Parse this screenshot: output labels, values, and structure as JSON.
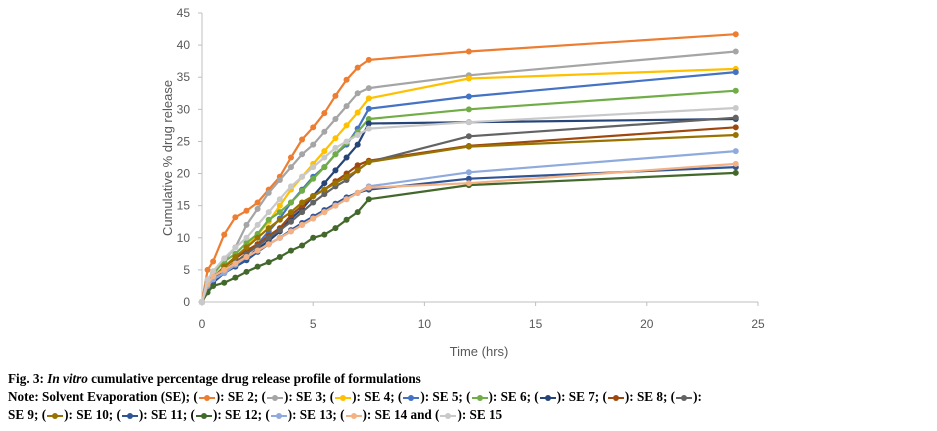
{
  "chart_data": {
    "type": "line",
    "xlabel": "Time (hrs)",
    "ylabel": "Cumulative % drug release",
    "xlim": [
      0,
      25
    ],
    "ylim": [
      0,
      45
    ],
    "xticks": [
      0,
      5,
      10,
      15,
      20,
      25
    ],
    "yticks": [
      0,
      5,
      10,
      15,
      20,
      25,
      30,
      35,
      40,
      45
    ],
    "series": [
      {
        "name": "SE 2",
        "color": "#ed7d31",
        "x": [
          0,
          0.25,
          0.5,
          1,
          1.5,
          2,
          2.5,
          3,
          3.5,
          4,
          4.5,
          5,
          5.5,
          6,
          6.5,
          7,
          7.5,
          12,
          24
        ],
        "y": [
          0,
          5,
          6.3,
          10.5,
          13.2,
          14.2,
          15.5,
          17.5,
          19.5,
          22.5,
          25.3,
          27.2,
          29.4,
          32.1,
          34.6,
          36.5,
          37.7,
          39,
          41.7
        ]
      },
      {
        "name": "SE 3",
        "color": "#a5a5a5",
        "x": [
          0,
          0.25,
          0.5,
          1,
          1.5,
          2,
          2.5,
          3,
          3.5,
          4,
          4.5,
          5,
          5.5,
          6,
          6.5,
          7,
          7.5,
          12,
          24
        ],
        "y": [
          0,
          3,
          4.2,
          6.5,
          8.5,
          12,
          14.5,
          17,
          19,
          21,
          23,
          24.5,
          26.5,
          28.5,
          30.5,
          32.5,
          33.3,
          35.3,
          39
        ]
      },
      {
        "name": "SE 4",
        "color": "#ffc000",
        "x": [
          0,
          0.25,
          0.5,
          1,
          1.5,
          2,
          2.5,
          3,
          3.5,
          4,
          4.5,
          5,
          5.5,
          6,
          6.5,
          7,
          7.5,
          12,
          24
        ],
        "y": [
          0,
          2.5,
          3.5,
          5,
          6.8,
          8.5,
          10.5,
          12.5,
          15,
          17.5,
          19.5,
          21.5,
          23.5,
          25.5,
          27.5,
          29.5,
          31.7,
          34.8,
          36.3
        ]
      },
      {
        "name": "SE 5",
        "color": "#4472c4",
        "x": [
          0,
          0.25,
          0.5,
          1,
          1.5,
          2,
          2.5,
          3,
          3.5,
          4,
          4.5,
          5,
          5.5,
          6,
          6.5,
          7,
          7.5,
          12,
          24
        ],
        "y": [
          0,
          2.5,
          3.5,
          5,
          6,
          7.5,
          9,
          11,
          13,
          15.5,
          17.5,
          19.5,
          21,
          23,
          24.5,
          27,
          30.1,
          32,
          35.8
        ]
      },
      {
        "name": "SE 6",
        "color": "#70ad47",
        "x": [
          0,
          0.25,
          0.5,
          1,
          1.5,
          2,
          2.5,
          3,
          3.5,
          4,
          4.5,
          5,
          5.5,
          6,
          6.5,
          7,
          7.5,
          12,
          24
        ],
        "y": [
          0,
          3,
          4.5,
          6.3,
          7.5,
          9.2,
          10.6,
          12.8,
          14,
          15.5,
          17.3,
          19.2,
          21,
          23,
          24.8,
          26.5,
          28.5,
          30,
          32.9
        ]
      },
      {
        "name": "SE 7",
        "color": "#264478",
        "x": [
          0,
          0.25,
          0.5,
          1,
          1.5,
          2,
          2.5,
          3,
          3.5,
          4,
          4.5,
          5,
          5.5,
          6,
          6.5,
          7,
          7.5,
          12,
          24
        ],
        "y": [
          0,
          2.2,
          3.3,
          4.8,
          5.8,
          6.8,
          8.3,
          9.5,
          11,
          13,
          14.5,
          16.5,
          18.5,
          20.5,
          22.5,
          24.5,
          27.8,
          28,
          28.5
        ]
      },
      {
        "name": "SE 8",
        "color": "#9e480e",
        "x": [
          0,
          0.25,
          0.5,
          1,
          1.5,
          2,
          2.5,
          3,
          3.5,
          4,
          4.5,
          5,
          5.5,
          6,
          6.5,
          7,
          7.5,
          12,
          24
        ],
        "y": [
          0,
          2.5,
          3.8,
          5.5,
          6.8,
          8,
          9,
          10.3,
          11.5,
          13.5,
          15,
          16.5,
          17.5,
          18.8,
          20,
          21.3,
          22,
          24.3,
          27.2
        ]
      },
      {
        "name": "SE 9",
        "color": "#636363",
        "x": [
          0,
          0.25,
          0.5,
          1,
          1.5,
          2,
          2.5,
          3,
          3.5,
          4,
          4.5,
          5,
          5.5,
          6,
          6.5,
          7,
          7.5,
          12,
          24
        ],
        "y": [
          0,
          2.3,
          3.5,
          5,
          6.2,
          7.5,
          8.7,
          10,
          11.2,
          12.5,
          14,
          15.5,
          16.8,
          18,
          19,
          20.5,
          21.8,
          25.8,
          28.7
        ]
      },
      {
        "name": "SE 10",
        "color": "#997300",
        "x": [
          0,
          0.25,
          0.5,
          1,
          1.5,
          2,
          2.5,
          3,
          3.5,
          4,
          4.5,
          5,
          5.5,
          6,
          6.5,
          7,
          7.5,
          12,
          24
        ],
        "y": [
          0,
          2.6,
          3.8,
          5.5,
          7,
          8.5,
          10,
          11.5,
          12.8,
          14,
          15.5,
          16.5,
          17.5,
          18.5,
          19.5,
          20.5,
          21.8,
          24.2,
          26
        ]
      },
      {
        "name": "SE 11",
        "color": "#2f5597",
        "x": [
          0,
          0.25,
          0.5,
          1,
          1.5,
          2,
          2.5,
          3,
          3.5,
          4,
          4.5,
          5,
          5.5,
          6,
          6.5,
          7,
          7.5,
          12,
          24
        ],
        "y": [
          0,
          2,
          3,
          4.5,
          5.5,
          6.5,
          7.8,
          9,
          10,
          11.2,
          12.3,
          13.3,
          14.3,
          15.3,
          16.3,
          17,
          17.5,
          19.2,
          21
        ]
      },
      {
        "name": "SE 12",
        "color": "#43682b",
        "x": [
          0,
          0.25,
          0.5,
          1,
          1.5,
          2,
          2.5,
          3,
          3.5,
          4,
          4.5,
          5,
          5.5,
          6,
          6.5,
          7,
          7.5,
          12,
          24
        ],
        "y": [
          0,
          1.5,
          2.5,
          3,
          3.8,
          4.7,
          5.5,
          6.2,
          7,
          8,
          8.8,
          10,
          10.5,
          11.5,
          12.8,
          14,
          16,
          18.2,
          20.1
        ]
      },
      {
        "name": "SE 13",
        "color": "#8faadc",
        "x": [
          0,
          0.25,
          0.5,
          1,
          1.5,
          2,
          2.5,
          3,
          3.5,
          4,
          4.5,
          5,
          5.5,
          6,
          6.5,
          7,
          7.5,
          12,
          24
        ],
        "y": [
          0,
          2.5,
          3.5,
          4.5,
          5.8,
          7,
          8,
          9,
          10,
          11,
          12,
          13,
          14,
          15,
          16,
          17,
          18,
          20.2,
          23.5
        ]
      },
      {
        "name": "SE 14",
        "color": "#f4b183",
        "x": [
          0,
          0.25,
          0.5,
          1,
          1.5,
          2,
          2.5,
          3,
          3.5,
          4,
          4.5,
          5,
          5.5,
          6,
          6.5,
          7,
          7.5,
          12,
          24
        ],
        "y": [
          0,
          2.8,
          4,
          5,
          6,
          7,
          8,
          9,
          10,
          11,
          12,
          13,
          14,
          15,
          16,
          17,
          17.8,
          18.5,
          21.5
        ]
      },
      {
        "name": "SE 15",
        "color": "#c9c9c9",
        "x": [
          0,
          0.25,
          0.5,
          1,
          1.5,
          2,
          2.5,
          3,
          3.5,
          4,
          4.5,
          5,
          5.5,
          6,
          6.5,
          7,
          7.5,
          12,
          24
        ],
        "y": [
          0,
          3.5,
          4.8,
          6.8,
          8.5,
          10,
          12,
          14,
          16,
          18,
          19.5,
          21,
          22.5,
          24,
          25,
          26,
          27,
          28,
          30.2
        ]
      }
    ]
  },
  "caption": {
    "line1_prefix": "Fig. 3: ",
    "line1_italic": "In vitro",
    "line1_rest": " cumulative percentage drug release profile of formulations",
    "note_prefix": "Note: Solvent Evaporation (SE); (",
    "legend_items": [
      {
        "label": "): SE 2; (",
        "color": "#ed7d31"
      },
      {
        "label": "): SE 3; (",
        "color": "#a5a5a5"
      },
      {
        "label": "): SE 4; (",
        "color": "#ffc000"
      },
      {
        "label": "): SE 5; (",
        "color": "#4472c4"
      },
      {
        "label": "): SE 6; (",
        "color": "#70ad47"
      },
      {
        "label": "): SE 7; (",
        "color": "#264478"
      },
      {
        "label": "): SE 8; (",
        "color": "#9e480e"
      },
      {
        "label": "):",
        "color": "#636363"
      }
    ],
    "line3_prefix": "SE 9; (",
    "legend_items2": [
      {
        "label": "): SE 10; (",
        "color": "#997300"
      },
      {
        "label": "): SE 11; (",
        "color": "#2f5597"
      },
      {
        "label": "): SE 12; (",
        "color": "#43682b"
      },
      {
        "label": "): SE 13; (",
        "color": "#8faadc"
      },
      {
        "label": "): SE 14 and (",
        "color": "#f4b183"
      },
      {
        "label": "): SE 15",
        "color": "#c9c9c9"
      }
    ]
  }
}
